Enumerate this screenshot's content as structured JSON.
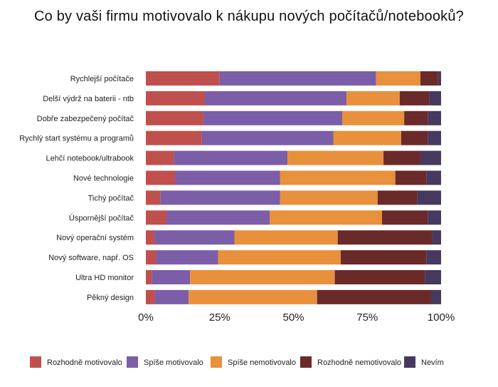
{
  "chart_data": {
    "type": "bar",
    "orientation": "horizontal",
    "stacked": true,
    "title": "Co by vaši firmu motivovalo k nákupu nových počítačů/notebooků?",
    "xlabel": "",
    "ylabel": "",
    "xlim": [
      0,
      100
    ],
    "x_ticks": [
      "0%",
      "25%",
      "50%",
      "75%",
      "100%"
    ],
    "grid": false,
    "legend_position": "bottom",
    "categories": [
      "Rychlejší počítače",
      "Delší výdrž na baterii - ntb",
      "Dobře zabezpečený počítač",
      "Rychlý start systému a programů",
      "Lehčí notebook/ultrabook",
      "Nové technologie",
      "Tichý počítač",
      "Úspornější počítač",
      "Nový operační systém",
      "Nový software, např. OS",
      "Ultra HD monitor",
      "Pěkný design"
    ],
    "series": [
      {
        "name": "Rozhodně motivovalo",
        "color": "#c0504d",
        "values": [
          25,
          20,
          19.5,
          19,
          9.5,
          10,
          5,
          7,
          3,
          3.5,
          2,
          3
        ]
      },
      {
        "name": "Spíše motivovalo",
        "color": "#7b5ea7",
        "values": [
          53,
          48,
          47,
          44.5,
          38.5,
          35.5,
          40.5,
          35,
          27,
          21,
          13,
          11.5
        ]
      },
      {
        "name": "Spíše nemotivovalo",
        "color": "#e8903c",
        "values": [
          15,
          18,
          21,
          23,
          32.5,
          39,
          33,
          38,
          35,
          41.5,
          49,
          43.5
        ]
      },
      {
        "name": "Rozhodně nemotivovalo",
        "color": "#6b2a2a",
        "values": [
          6,
          10,
          8,
          9,
          12.5,
          10.5,
          13.5,
          15.5,
          32,
          29,
          30.5,
          38.5
        ]
      },
      {
        "name": "Nevím",
        "color": "#47385f",
        "values": [
          1,
          4,
          4.5,
          4.5,
          7,
          5,
          8,
          4.5,
          3,
          5,
          5.5,
          3.5
        ]
      }
    ]
  }
}
